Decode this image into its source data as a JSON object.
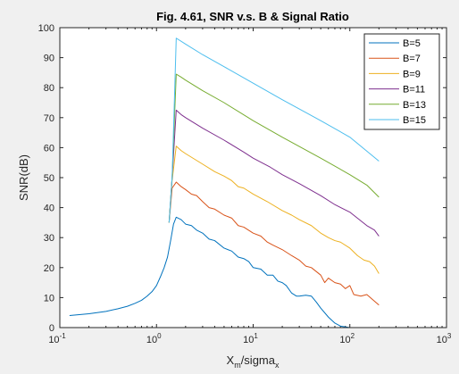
{
  "window": {
    "background": "#f0f0f0"
  },
  "chart_data": {
    "type": "line",
    "title": "Fig. 4.61, SNR v.s. B & Signal Ratio",
    "xlabel": {
      "base": "X",
      "base_sub": "m",
      "mid": "/sigma",
      "mid_sub": "x"
    },
    "ylabel": "SNR(dB)",
    "xscale": "log",
    "xlim": [
      0.1,
      1000
    ],
    "ylim": [
      0,
      100
    ],
    "xticks": [
      {
        "value": 0.1,
        "base": "10",
        "exp": "-1"
      },
      {
        "value": 1,
        "base": "10",
        "exp": "0"
      },
      {
        "value": 10,
        "base": "10",
        "exp": "1"
      },
      {
        "value": 100,
        "base": "10",
        "exp": "2"
      },
      {
        "value": 1000,
        "base": "10",
        "exp": "3"
      }
    ],
    "yticks": [
      0,
      10,
      20,
      30,
      40,
      50,
      60,
      70,
      80,
      90,
      100
    ],
    "grid": false,
    "legend_position": "top-right",
    "series": [
      {
        "name": "B=5",
        "color": "#0072bd",
        "points": [
          [
            0.126,
            4.0
          ],
          [
            0.2,
            4.6
          ],
          [
            0.3,
            5.4
          ],
          [
            0.4,
            6.3
          ],
          [
            0.5,
            7.1
          ],
          [
            0.6,
            8.1
          ],
          [
            0.7,
            9.1
          ],
          [
            0.8,
            10.5
          ],
          [
            0.9,
            12.0
          ],
          [
            1.0,
            14.0
          ],
          [
            1.1,
            17.0
          ],
          [
            1.2,
            20.0
          ],
          [
            1.3,
            23.5
          ],
          [
            1.4,
            29.0
          ],
          [
            1.5,
            34.5
          ],
          [
            1.6,
            36.8
          ],
          [
            1.8,
            36.0
          ],
          [
            2.0,
            34.5
          ],
          [
            2.3,
            34.0
          ],
          [
            2.6,
            32.5
          ],
          [
            3.0,
            31.5
          ],
          [
            3.5,
            29.5
          ],
          [
            4.0,
            29.0
          ],
          [
            5.0,
            26.5
          ],
          [
            6.0,
            25.5
          ],
          [
            7.0,
            23.5
          ],
          [
            8.0,
            23.0
          ],
          [
            9.0,
            22.0
          ],
          [
            10.0,
            20.0
          ],
          [
            12.0,
            19.5
          ],
          [
            14.0,
            17.5
          ],
          [
            16.0,
            17.5
          ],
          [
            18.0,
            15.5
          ],
          [
            20.0,
            15.0
          ],
          [
            22.0,
            14.0
          ],
          [
            25.0,
            11.5
          ],
          [
            28.0,
            10.5
          ],
          [
            30.0,
            10.5
          ],
          [
            35.0,
            10.8
          ],
          [
            40.0,
            10.5
          ],
          [
            45.0,
            8.5
          ],
          [
            50.0,
            6.5
          ],
          [
            60.0,
            3.5
          ],
          [
            70.0,
            1.5
          ],
          [
            80.0,
            0.5
          ],
          [
            100.0,
            0.0
          ],
          [
            150.0,
            0.0
          ],
          [
            200.0,
            0.0
          ]
        ]
      },
      {
        "name": "B=7",
        "color": "#d95319",
        "points": [
          [
            1.35,
            35.0
          ],
          [
            1.45,
            46.5
          ],
          [
            1.6,
            48.5
          ],
          [
            1.8,
            47.0
          ],
          [
            2.0,
            46.0
          ],
          [
            2.3,
            44.5
          ],
          [
            2.6,
            44.0
          ],
          [
            3.0,
            42.0
          ],
          [
            3.5,
            40.0
          ],
          [
            4.0,
            39.5
          ],
          [
            5.0,
            37.5
          ],
          [
            6.0,
            36.5
          ],
          [
            7.0,
            34.0
          ],
          [
            8.0,
            33.5
          ],
          [
            10.0,
            31.5
          ],
          [
            12.0,
            30.5
          ],
          [
            14.0,
            28.5
          ],
          [
            16.0,
            27.5
          ],
          [
            20.0,
            26.0
          ],
          [
            25.0,
            24.0
          ],
          [
            30.0,
            22.5
          ],
          [
            35.0,
            20.5
          ],
          [
            40.0,
            20.0
          ],
          [
            50.0,
            17.5
          ],
          [
            55.0,
            15.0
          ],
          [
            60.0,
            16.5
          ],
          [
            70.0,
            15.0
          ],
          [
            80.0,
            14.5
          ],
          [
            90.0,
            13.0
          ],
          [
            100.0,
            14.0
          ],
          [
            110.0,
            11.0
          ],
          [
            130.0,
            10.5
          ],
          [
            150.0,
            11.0
          ],
          [
            170.0,
            9.5
          ],
          [
            200.0,
            7.5
          ]
        ]
      },
      {
        "name": "B=9",
        "color": "#edb120",
        "points": [
          [
            1.35,
            35.0
          ],
          [
            1.45,
            49.0
          ],
          [
            1.6,
            60.5
          ],
          [
            1.8,
            59.0
          ],
          [
            2.0,
            58.0
          ],
          [
            3.0,
            54.5
          ],
          [
            4.0,
            52.0
          ],
          [
            5.0,
            50.5
          ],
          [
            6.0,
            49.0
          ],
          [
            7.0,
            47.0
          ],
          [
            8.0,
            46.5
          ],
          [
            10.0,
            44.5
          ],
          [
            14.0,
            42.0
          ],
          [
            20.0,
            39.0
          ],
          [
            25.0,
            37.5
          ],
          [
            30.0,
            36.0
          ],
          [
            40.0,
            34.0
          ],
          [
            50.0,
            31.5
          ],
          [
            60.0,
            30.0
          ],
          [
            70.0,
            29.0
          ],
          [
            80.0,
            28.5
          ],
          [
            100.0,
            26.5
          ],
          [
            120.0,
            24.0
          ],
          [
            140.0,
            22.5
          ],
          [
            160.0,
            22.0
          ],
          [
            180.0,
            20.5
          ],
          [
            200.0,
            18.0
          ]
        ]
      },
      {
        "name": "B=11",
        "color": "#7e2f8e",
        "points": [
          [
            1.35,
            35.0
          ],
          [
            1.45,
            50.0
          ],
          [
            1.6,
            72.5
          ],
          [
            1.8,
            71.0
          ],
          [
            2.0,
            70.0
          ],
          [
            3.0,
            66.5
          ],
          [
            5.0,
            62.5
          ],
          [
            8.0,
            58.5
          ],
          [
            10.0,
            56.5
          ],
          [
            15.0,
            53.5
          ],
          [
            20.0,
            51.0
          ],
          [
            30.0,
            48.0
          ],
          [
            50.0,
            44.0
          ],
          [
            70.0,
            41.0
          ],
          [
            100.0,
            38.5
          ],
          [
            150.0,
            34.0
          ],
          [
            180.0,
            32.5
          ],
          [
            200.0,
            30.5
          ]
        ]
      },
      {
        "name": "B=13",
        "color": "#77ac30",
        "points": [
          [
            1.35,
            35.0
          ],
          [
            1.45,
            50.0
          ],
          [
            1.6,
            84.5
          ],
          [
            1.8,
            83.5
          ],
          [
            2.0,
            82.5
          ],
          [
            3.0,
            79.0
          ],
          [
            5.0,
            75.0
          ],
          [
            10.0,
            69.0
          ],
          [
            20.0,
            63.5
          ],
          [
            50.0,
            56.5
          ],
          [
            100.0,
            51.0
          ],
          [
            150.0,
            47.5
          ],
          [
            200.0,
            43.5
          ]
        ]
      },
      {
        "name": "B=15",
        "color": "#4dbeee",
        "points": [
          [
            1.35,
            35.0
          ],
          [
            1.45,
            50.0
          ],
          [
            1.6,
            96.5
          ],
          [
            2.0,
            94.5
          ],
          [
            3.0,
            91.0
          ],
          [
            5.0,
            87.0
          ],
          [
            10.0,
            81.5
          ],
          [
            20.0,
            76.0
          ],
          [
            50.0,
            69.0
          ],
          [
            100.0,
            63.5
          ],
          [
            200.0,
            55.5
          ]
        ]
      }
    ]
  }
}
